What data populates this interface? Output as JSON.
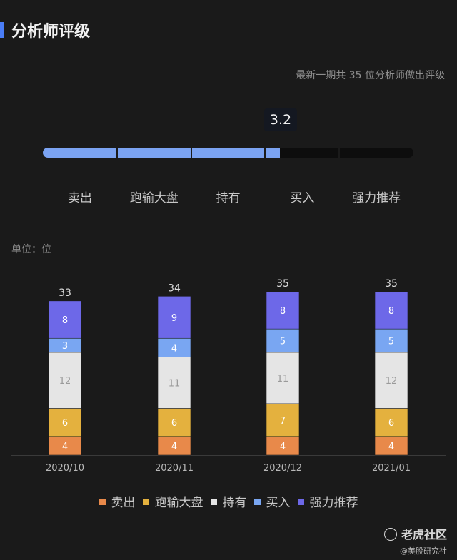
{
  "header": {
    "title": "分析师评级"
  },
  "summary": {
    "subtitle": "最新一期共 35 位分析师做出评级",
    "score": "3.2",
    "score_value": 3.2,
    "scale_max": 5,
    "labels": [
      "卖出",
      "跑输大盘",
      "持有",
      "买入",
      "强力推荐"
    ],
    "fill_color": "#7ba3f2",
    "track_color": "#0d0d0d"
  },
  "unit_label": "单位：位",
  "watermark": {
    "name": "老虎社区",
    "sub": "@美股研究社"
  },
  "chart_data": {
    "type": "bar",
    "stacked": true,
    "categories": [
      "2020/10",
      "2020/11",
      "2020/12",
      "2021/01"
    ],
    "totals": [
      33,
      34,
      35,
      35
    ],
    "ylim": [
      0,
      35
    ],
    "series": [
      {
        "name": "卖出",
        "color": "#e8894a",
        "values": [
          4,
          4,
          4,
          4
        ]
      },
      {
        "name": "跑输大盘",
        "color": "#e4b13e",
        "values": [
          6,
          6,
          7,
          6
        ]
      },
      {
        "name": "持有",
        "color": "#e5e5e5",
        "values": [
          12,
          11,
          11,
          12
        ]
      },
      {
        "name": "买入",
        "color": "#79a6f2",
        "values": [
          3,
          4,
          5,
          5
        ]
      },
      {
        "name": "强力推荐",
        "color": "#6d68e8",
        "values": [
          8,
          9,
          8,
          8
        ]
      }
    ],
    "legend_position": "bottom",
    "grid": false
  }
}
